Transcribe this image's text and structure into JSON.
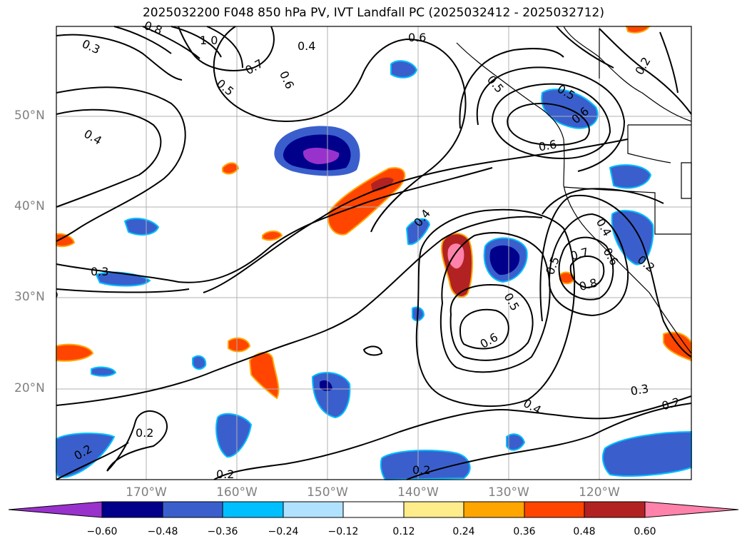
{
  "title": "2025032200 F048 850 hPa PV, IVT Landfall PC (2025032412 - 2025032712)",
  "lat_labels": [
    "50°N",
    "40°N",
    "30°N",
    "20°N"
  ],
  "lon_labels": [
    "170°W",
    "160°W",
    "150°W",
    "140°W",
    "130°W",
    "120°W"
  ],
  "contour_labels": [
    "1.0",
    "0.8",
    "0.7",
    "0.6",
    "0.5",
    "0.4",
    "0.3",
    "0.6",
    "0.5",
    "0.5",
    "0.6",
    "0.2",
    "0.6",
    "0.4",
    "0.3",
    "0.7",
    "0.8",
    "0.5",
    "0.4",
    "0.6",
    "0.2",
    "0.5",
    "0.6",
    "0.4",
    "0.3",
    "0.2",
    "0.2",
    "0.2",
    "0.2",
    "0.2",
    "0.4"
  ],
  "colorbar": {
    "ticks": [
      "−0.60",
      "−0.48",
      "−0.36",
      "−0.24",
      "−0.12",
      "0.12",
      "0.24",
      "0.36",
      "0.48",
      "0.60"
    ],
    "colors": [
      "#9932CC",
      "#00008B",
      "#3A5FCD",
      "#00BFFF",
      "#B0E2FF",
      "#FFFFFF",
      "#FFEC8B",
      "#FFA500",
      "#FF4500",
      "#B22222",
      "#FF82AB"
    ]
  }
}
